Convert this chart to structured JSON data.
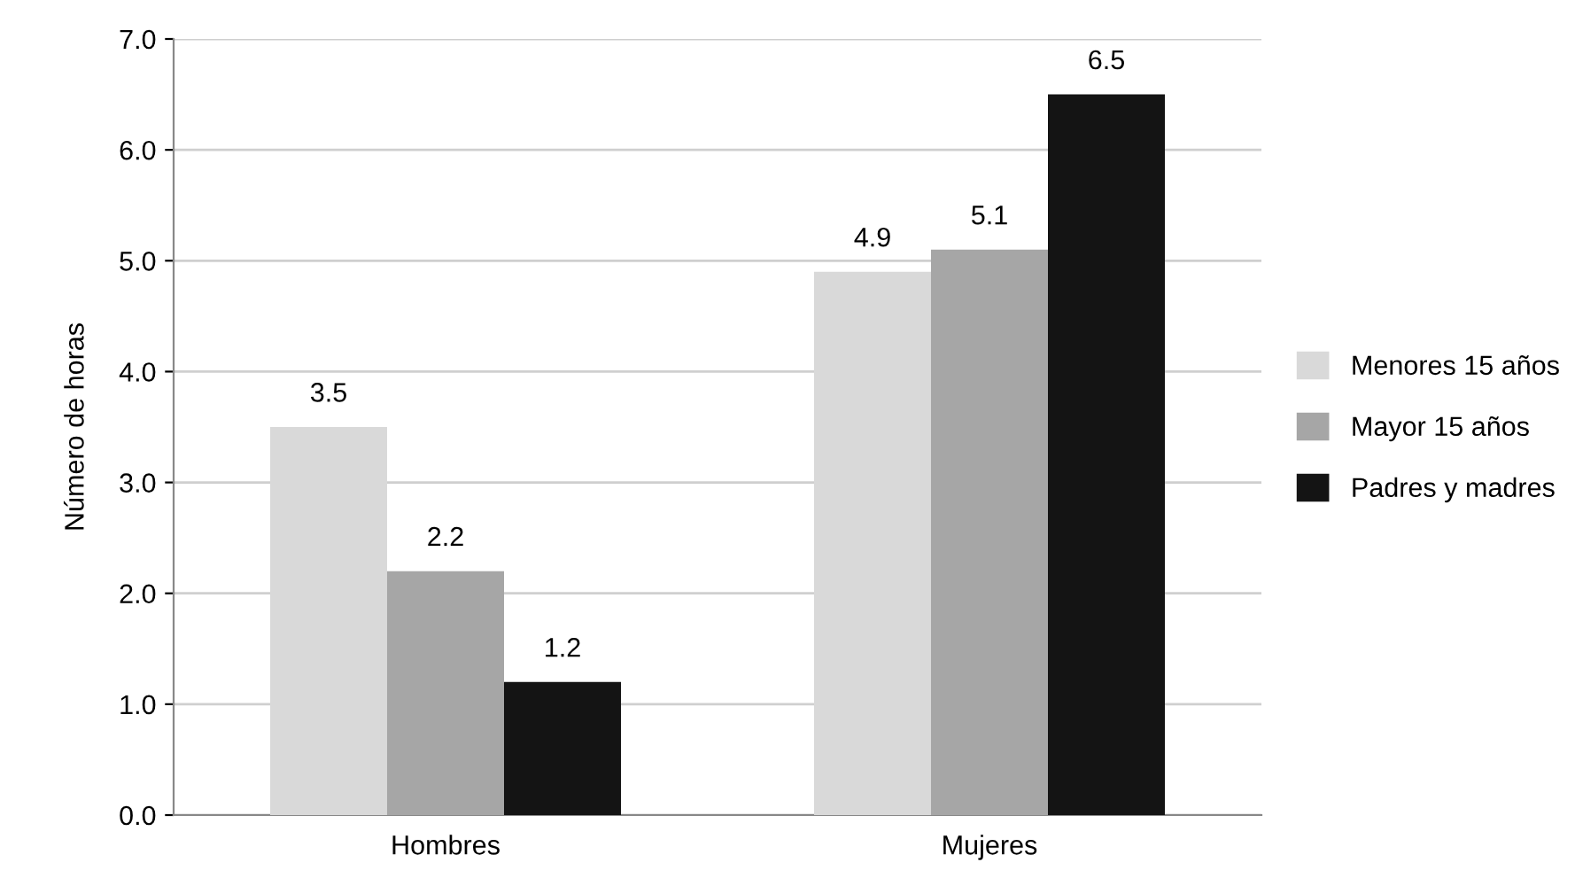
{
  "chart_data": {
    "type": "bar",
    "ylabel": "Número de horas",
    "categories": [
      "Hombres",
      "Mujeres"
    ],
    "series": [
      {
        "name": "Menores 15 años",
        "color": "#d9d9d9",
        "values": [
          3.5,
          4.9
        ]
      },
      {
        "name": "Mayor 15 años",
        "color": "#a6a6a6",
        "values": [
          2.2,
          5.1
        ]
      },
      {
        "name": "Padres y madres",
        "color": "#141414",
        "values": [
          1.2,
          6.5
        ]
      }
    ],
    "ylim": [
      0,
      7
    ],
    "yticks": [
      {
        "value": 0,
        "label": "0.0"
      },
      {
        "value": 1,
        "label": "1.0"
      },
      {
        "value": 2,
        "label": "2.0"
      },
      {
        "value": 3,
        "label": "3.0"
      },
      {
        "value": 4,
        "label": "4.0"
      },
      {
        "value": 5,
        "label": "5.0"
      },
      {
        "value": 6,
        "label": "6.0"
      },
      {
        "value": 7,
        "label": "7.0"
      }
    ],
    "grid": "y",
    "legend": "right",
    "data_labels": true
  }
}
